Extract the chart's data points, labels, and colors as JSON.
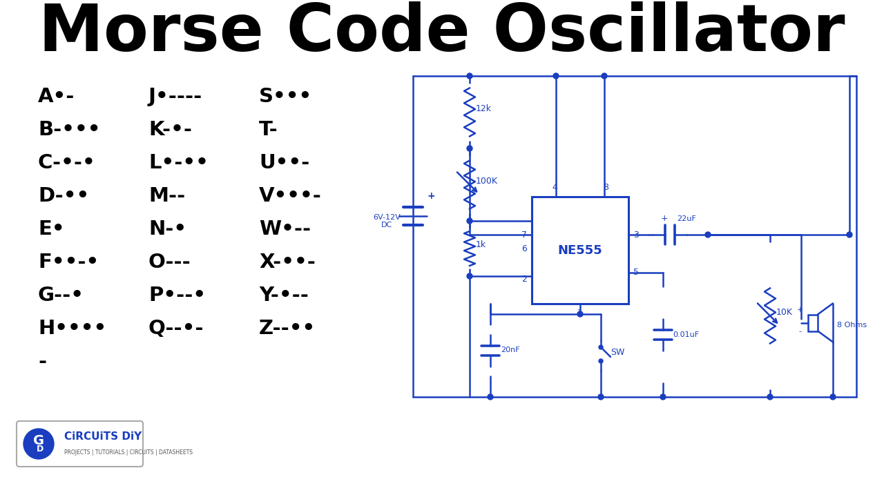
{
  "title": "Morse Code Oscillator",
  "title_fontsize": 68,
  "title_fontweight": "bold",
  "bg_color": "#ffffff",
  "morse_color": "#000000",
  "circuit_color": "#1a3ebf",
  "col1": [
    [
      "A",
      "•-"
    ],
    [
      "B",
      "-•••"
    ],
    [
      "C",
      "-•-•"
    ],
    [
      "D",
      "-••"
    ],
    [
      "E",
      "•"
    ],
    [
      "F",
      "••-•"
    ],
    [
      "G",
      "--•"
    ],
    [
      "H",
      "••••"
    ],
    [
      "-",
      ""
    ]
  ],
  "col2": [
    [
      "J",
      "•----"
    ],
    [
      "K",
      "-•-"
    ],
    [
      "L",
      "•-••"
    ],
    [
      "M",
      "--"
    ],
    [
      "N",
      "-•"
    ],
    [
      "O",
      "---"
    ],
    [
      "P",
      "•--•"
    ],
    [
      "Q",
      "--•-"
    ],
    [
      "",
      ""
    ]
  ],
  "col3": [
    [
      "S",
      "•••"
    ],
    [
      "T",
      "-"
    ],
    [
      "U",
      "••-"
    ],
    [
      "V",
      "•••-"
    ],
    [
      "W",
      "•--"
    ],
    [
      "X",
      "-••-"
    ],
    [
      "Y",
      "-•--"
    ],
    [
      "Z",
      "--••"
    ],
    [
      "",
      ""
    ]
  ]
}
